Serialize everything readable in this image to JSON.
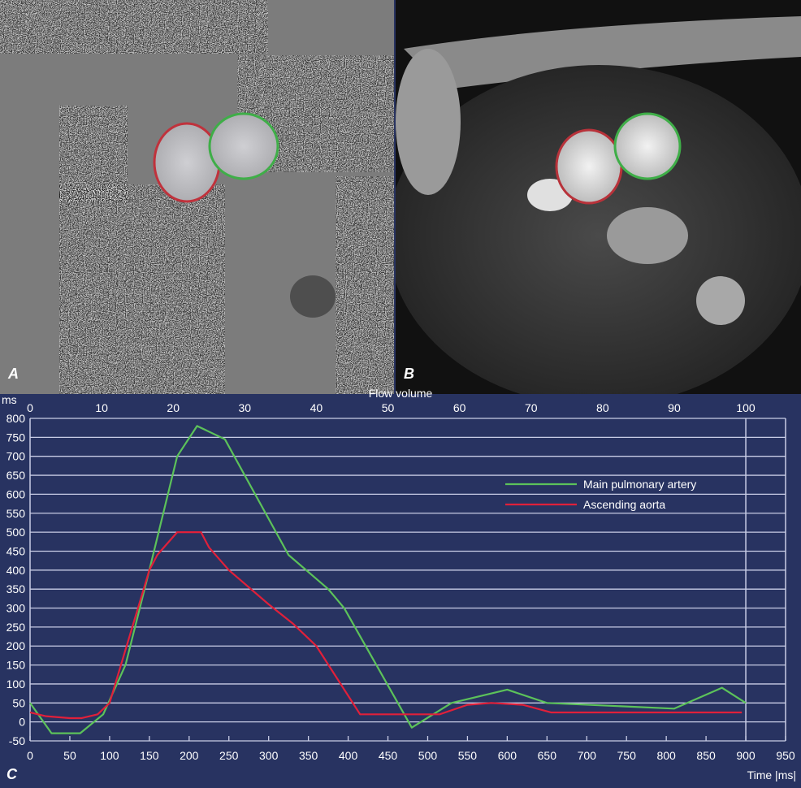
{
  "panels": [
    {
      "label": "A"
    },
    {
      "label": "B"
    }
  ],
  "chart_label": "C",
  "colors": {
    "background": "#283361",
    "grid": "#c9cde6",
    "pulmonary": "#5cc25a",
    "aorta": "#e0203a"
  },
  "chart_data": {
    "type": "line",
    "title": "",
    "ylabel": "ms",
    "xlabel": "Time |ms|",
    "x2label": "Flow volume",
    "xlim": [
      0,
      950
    ],
    "ylim": [
      -50,
      800
    ],
    "x2lim": [
      0,
      100
    ],
    "x2_span_time": [
      0,
      900
    ],
    "grid": "horizontal",
    "legend_position": "top-right",
    "xticks": [
      0,
      50,
      100,
      150,
      200,
      250,
      300,
      350,
      400,
      450,
      500,
      550,
      600,
      650,
      700,
      750,
      800,
      850,
      900,
      950
    ],
    "yticks": [
      -50,
      0,
      50,
      100,
      150,
      200,
      250,
      300,
      350,
      400,
      450,
      500,
      550,
      600,
      650,
      700,
      750,
      800
    ],
    "x2ticks": [
      0,
      10,
      20,
      30,
      40,
      50,
      60,
      70,
      80,
      90,
      100
    ],
    "series": [
      {
        "name": "Main pulmonary artery",
        "color": "#5cc25a",
        "x": [
          0,
          27,
          63,
          92,
          120,
          150,
          185,
          210,
          245,
          325,
          375,
          395,
          480,
          530,
          600,
          650,
          810,
          870,
          900
        ],
        "y": [
          50,
          -30,
          -30,
          20,
          150,
          400,
          700,
          780,
          745,
          440,
          350,
          300,
          -15,
          50,
          85,
          50,
          35,
          90,
          50
        ]
      },
      {
        "name": "Ascending aorta",
        "color": "#e0203a",
        "x": [
          0,
          20,
          50,
          65,
          85,
          100,
          150,
          160,
          185,
          215,
          225,
          250,
          300,
          330,
          360,
          415,
          515,
          550,
          580,
          620,
          655,
          895
        ],
        "y": [
          25,
          15,
          10,
          10,
          20,
          50,
          400,
          440,
          500,
          500,
          460,
          400,
          310,
          260,
          200,
          20,
          20,
          45,
          50,
          45,
          25,
          25
        ]
      }
    ]
  }
}
